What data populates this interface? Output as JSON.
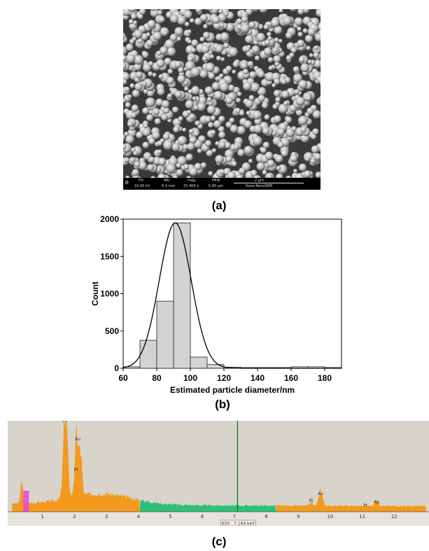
{
  "labels": {
    "a": "(a)",
    "b": "(b)",
    "c": "(c)"
  },
  "sem_bar": {
    "hv_label": "HV",
    "hv": "10.00 kV",
    "wd_label": "WD",
    "wd": "4.3 mm",
    "mag_label": "mag",
    "mag": "25 400 x",
    "hfw_label": "HFW",
    "hfw": "5.00 µm",
    "scale": "2 µm",
    "instrument": "Nova NanoSEM"
  },
  "chart_data": [
    {
      "type": "bar",
      "subtype": "histogram-with-gaussian-fit",
      "xlabel": "Estimated particle diameter/nm",
      "ylabel": "Count",
      "xlim": [
        60,
        190
      ],
      "ylim": [
        0,
        2000
      ],
      "xticks": [
        60,
        80,
        100,
        120,
        140,
        160,
        180
      ],
      "yticks": [
        0,
        500,
        1000,
        1500,
        2000
      ],
      "bin_width": 10,
      "bins": [
        {
          "x0": 60,
          "x1": 70,
          "count": 20
        },
        {
          "x0": 70,
          "x1": 80,
          "count": 375
        },
        {
          "x0": 80,
          "x1": 90,
          "count": 900
        },
        {
          "x0": 90,
          "x1": 100,
          "count": 1950
        },
        {
          "x0": 100,
          "x1": 110,
          "count": 150
        },
        {
          "x0": 110,
          "x1": 120,
          "count": 50
        },
        {
          "x0": 120,
          "x1": 130,
          "count": 15
        },
        {
          "x0": 130,
          "x1": 140,
          "count": 10
        },
        {
          "x0": 140,
          "x1": 150,
          "count": 10
        },
        {
          "x0": 150,
          "x1": 160,
          "count": 10
        },
        {
          "x0": 160,
          "x1": 170,
          "count": 20
        },
        {
          "x0": 170,
          "x1": 180,
          "count": 20
        },
        {
          "x0": 180,
          "x1": 190,
          "count": 10
        }
      ],
      "fit": {
        "mean": 91,
        "sigma": 9.5,
        "peak": 1950
      }
    },
    {
      "type": "area",
      "subtype": "eds-spectrum",
      "xlim": [
        0,
        13
      ],
      "xticks": [
        1,
        2,
        3,
        4,
        5,
        6,
        7,
        8,
        9,
        10,
        11,
        12
      ],
      "marker_x": 7.1,
      "readout": "650 : 7.164 keV",
      "peaks": [
        {
          "label": "Pt",
          "x": 1.7
        },
        {
          "label": "Au",
          "x": 2.1
        },
        {
          "label": "Pt",
          "x": 2.05
        },
        {
          "label": "Pt",
          "x": 9.4
        },
        {
          "label": "Au",
          "x": 9.7
        },
        {
          "label": "Pt",
          "x": 11.1
        },
        {
          "label": "Au",
          "x": 11.45
        }
      ]
    }
  ]
}
